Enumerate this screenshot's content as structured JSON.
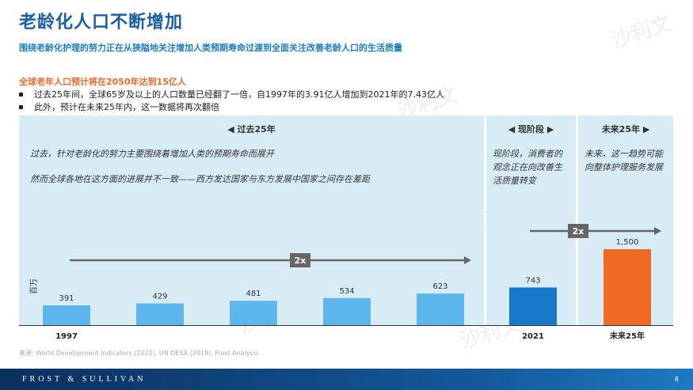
{
  "header": {
    "title": "老龄化人口不断增加",
    "subtitle": "围绕老龄化护理的努力正在从狭隘地关注增加人类预期寿命过渡到全面关注改善老龄人口的生活质量"
  },
  "highlight": "全球老年人口预计将在2050年达到15亿人",
  "bullets": [
    "过去25年间，全球65岁及以上的人口数量已经翻了一倍，自1997年的3.91亿人增加到2021年的7.43亿人",
    "此外，预计在未来25年内，这一数据将再次翻倍"
  ],
  "phases": {
    "past": {
      "label": "◀  过去25年",
      "text1": "过去，针对老龄化的努力主要围绕着增加人类的预期寿命而展开",
      "text2": "然而全球各地在这方面的进展并不一致——西方发达国家与东方发展中国家之间存在差距"
    },
    "current": {
      "label": "◀ 现阶段 ▶",
      "text": "现阶段，消费者的观念正在向改善生活质量转变"
    },
    "future": {
      "label": "未来25年 ▶",
      "text": "未来，这一趋势可能向整体护理服务发展"
    }
  },
  "chart_data": {
    "type": "bar",
    "ylabel": "百万",
    "categories": [
      "1997",
      "",
      "",
      "",
      "",
      "2021",
      "未来25年"
    ],
    "values": [
      391,
      429,
      481,
      534,
      623,
      743,
      1500
    ],
    "value_labels": [
      "391",
      "429",
      "481",
      "534",
      "623",
      "743",
      "1,500"
    ],
    "annotations": [
      "2x",
      "2x"
    ],
    "colors": {
      "past": "#5db6ec",
      "current": "#1578c8",
      "future": "#ee6a25"
    }
  },
  "source": "来源: World Development Indicators (2021), UN DESA (2019), Frost Analysis",
  "footer": {
    "brand": "FROST & SULLIVAN",
    "page": "8"
  },
  "watermark": "沙利文"
}
